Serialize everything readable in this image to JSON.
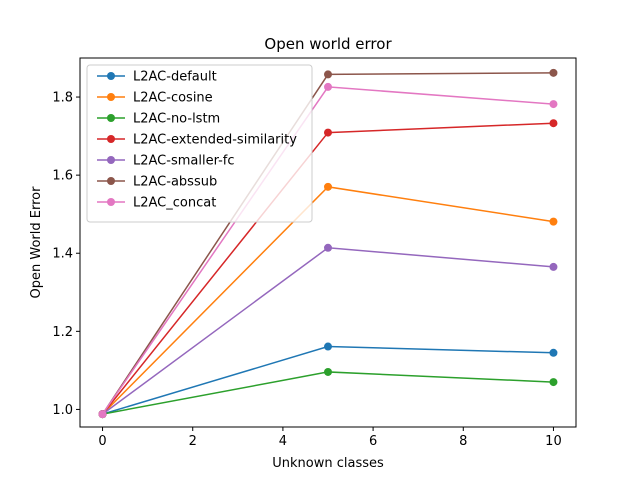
{
  "chart_data": {
    "type": "line",
    "title": "Open world error",
    "xlabel": "Unknown classes",
    "ylabel": "Open World Error",
    "x": [
      0,
      5,
      10
    ],
    "xlim": [
      -0.5,
      10.5
    ],
    "ylim": [
      0.955,
      1.9
    ],
    "xticks": [
      0,
      2,
      4,
      6,
      8,
      10
    ],
    "yticks": [
      1.0,
      1.2,
      1.4,
      1.6,
      1.8
    ],
    "xtick_labels": [
      "0",
      "2",
      "4",
      "6",
      "8",
      "10"
    ],
    "ytick_labels": [
      "1.0",
      "1.2",
      "1.4",
      "1.6",
      "1.8"
    ],
    "grid": false,
    "legend_position": "top-left",
    "series": [
      {
        "name": "L2AC-default",
        "color": "#1f77b4",
        "values": [
          0.988,
          1.161,
          1.145
        ]
      },
      {
        "name": "L2AC-cosine",
        "color": "#ff7f0e",
        "values": [
          0.988,
          1.57,
          1.481
        ]
      },
      {
        "name": "L2AC-no-lstm",
        "color": "#2ca02c",
        "values": [
          0.988,
          1.096,
          1.07
        ]
      },
      {
        "name": "L2AC-extended-similarity",
        "color": "#d62728",
        "values": [
          0.988,
          1.709,
          1.733
        ]
      },
      {
        "name": "L2AC-smaller-fc",
        "color": "#9467bd",
        "values": [
          0.988,
          1.414,
          1.365
        ]
      },
      {
        "name": "L2AC-abssub",
        "color": "#8c564b",
        "values": [
          0.988,
          1.858,
          1.862
        ]
      },
      {
        "name": "L2AC_concat",
        "color": "#e377c2",
        "values": [
          0.988,
          1.826,
          1.782
        ]
      }
    ]
  }
}
